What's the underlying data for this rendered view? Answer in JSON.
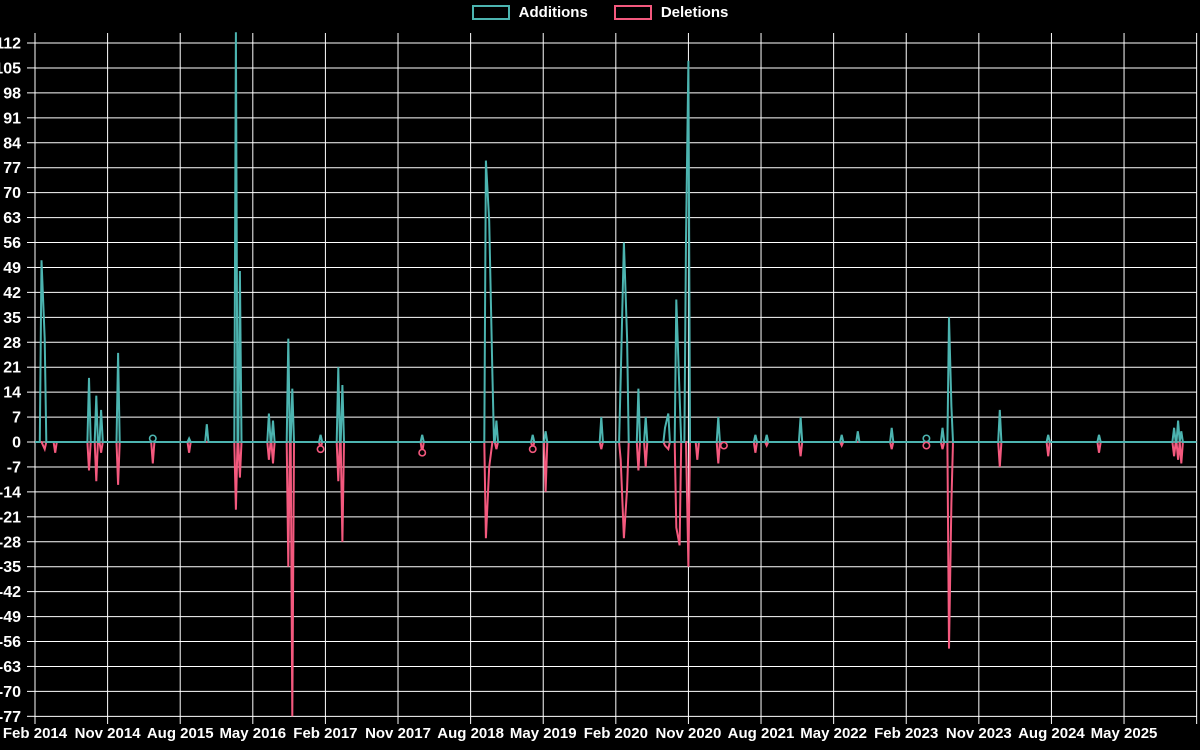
{
  "legend": {
    "additions_label": "Additions",
    "deletions_label": "Deletions"
  },
  "colors": {
    "background": "#000000",
    "grid": "#ffffff",
    "text": "#ffffff",
    "additions": "#4cb4b0",
    "deletions": "#f4597e"
  },
  "chart_data": {
    "type": "line",
    "title": "",
    "xlabel": "",
    "ylabel": "",
    "legend_position": "top-center",
    "grid": true,
    "ylim": [
      -77,
      112
    ],
    "y_tick_step": 7,
    "y_tick_labels": [
      "112",
      "105",
      "98",
      "91",
      "84",
      "77",
      "70",
      "63",
      "56",
      "49",
      "42",
      "35",
      "28",
      "21",
      "14",
      "7",
      "0",
      "-7",
      "-14",
      "-21",
      "-28",
      "-35",
      "-42",
      "-49",
      "-56",
      "-63",
      "-70",
      "-77"
    ],
    "x_tick_labels": [
      "Feb 2014",
      "Nov 2014",
      "Aug 2015",
      "May 2016",
      "Feb 2017",
      "Nov 2017",
      "Aug 2018",
      "May 2019",
      "Feb 2020",
      "Nov 2020",
      "Aug 2021",
      "May 2022",
      "Feb 2023",
      "Nov 2023",
      "Aug 2024",
      "May 2025"
    ],
    "x_tick_interval_months": 9,
    "x_total_months": 144,
    "series": [
      {
        "name": "Additions",
        "color_key": "additions",
        "value_key": "a"
      },
      {
        "name": "Deletions",
        "color_key": "deletions",
        "value_key": "d"
      }
    ],
    "points": [
      {
        "m": 0.8,
        "a": 51,
        "d": 0
      },
      {
        "m": 1.2,
        "a": 29,
        "d": -2
      },
      {
        "m": 2.5,
        "a": 0,
        "d": -3
      },
      {
        "m": 6.7,
        "a": 18,
        "d": -8
      },
      {
        "m": 7.6,
        "a": 13,
        "d": -11
      },
      {
        "m": 8.2,
        "a": 9,
        "d": -3
      },
      {
        "m": 10.3,
        "a": 25,
        "d": -12
      },
      {
        "m": 14.6,
        "a": 1,
        "d": -6,
        "marker": "a"
      },
      {
        "m": 19.1,
        "a": 1,
        "d": -3
      },
      {
        "m": 21.3,
        "a": 5,
        "d": 0
      },
      {
        "m": 24.9,
        "a": 115,
        "d": -19
      },
      {
        "m": 25.4,
        "a": 48,
        "d": -10
      },
      {
        "m": 29.0,
        "a": 8,
        "d": -5
      },
      {
        "m": 29.5,
        "a": 6,
        "d": -6
      },
      {
        "m": 31.4,
        "a": 29,
        "d": -35
      },
      {
        "m": 31.9,
        "a": 15,
        "d": -77
      },
      {
        "m": 35.4,
        "a": 2,
        "d": -2,
        "marker": "d"
      },
      {
        "m": 37.6,
        "a": 21,
        "d": -11
      },
      {
        "m": 38.1,
        "a": 16,
        "d": -28
      },
      {
        "m": 48.0,
        "a": 2,
        "d": -3,
        "marker": "d"
      },
      {
        "m": 55.9,
        "a": 79,
        "d": -27
      },
      {
        "m": 56.3,
        "a": 62,
        "d": -7
      },
      {
        "m": 56.7,
        "a": 19,
        "d": 0
      },
      {
        "m": 57.2,
        "a": 6,
        "d": -2
      },
      {
        "m": 61.7,
        "a": 2,
        "d": -2,
        "marker": "d"
      },
      {
        "m": 63.3,
        "a": 3,
        "d": -14
      },
      {
        "m": 70.2,
        "a": 7,
        "d": -2
      },
      {
        "m": 72.6,
        "a": 18,
        "d": -5
      },
      {
        "m": 73.0,
        "a": 56,
        "d": -27
      },
      {
        "m": 73.4,
        "a": 29,
        "d": -13
      },
      {
        "m": 74.8,
        "a": 15,
        "d": -8
      },
      {
        "m": 75.7,
        "a": 7,
        "d": -7
      },
      {
        "m": 78.1,
        "a": 4,
        "d": -1
      },
      {
        "m": 78.5,
        "a": 8,
        "d": -2
      },
      {
        "m": 79.5,
        "a": 40,
        "d": -24
      },
      {
        "m": 79.9,
        "a": 13,
        "d": -29
      },
      {
        "m": 80.7,
        "a": 57,
        "d": 0
      },
      {
        "m": 81.0,
        "a": 107,
        "d": -35
      },
      {
        "m": 82.1,
        "a": 0,
        "d": -5
      },
      {
        "m": 84.7,
        "a": 7,
        "d": -6
      },
      {
        "m": 85.4,
        "a": 0,
        "d": -1,
        "marker": "d"
      },
      {
        "m": 89.3,
        "a": 2,
        "d": -3
      },
      {
        "m": 90.7,
        "a": 2,
        "d": -1
      },
      {
        "m": 94.9,
        "a": 7,
        "d": -4
      },
      {
        "m": 100.0,
        "a": 2,
        "d": -1
      },
      {
        "m": 102.0,
        "a": 3,
        "d": 0
      },
      {
        "m": 106.2,
        "a": 4,
        "d": -2
      },
      {
        "m": 110.5,
        "a": 1,
        "d": -1,
        "marker": "ad"
      },
      {
        "m": 112.5,
        "a": 4,
        "d": -2
      },
      {
        "m": 113.3,
        "a": 35,
        "d": -58
      },
      {
        "m": 113.6,
        "a": 10,
        "d": -17
      },
      {
        "m": 119.6,
        "a": 9,
        "d": -7
      },
      {
        "m": 125.6,
        "a": 2,
        "d": -4
      },
      {
        "m": 131.9,
        "a": 2,
        "d": -3
      },
      {
        "m": 141.2,
        "a": 4,
        "d": -4
      },
      {
        "m": 141.7,
        "a": 6,
        "d": -5
      },
      {
        "m": 142.1,
        "a": 3,
        "d": -6
      }
    ]
  }
}
